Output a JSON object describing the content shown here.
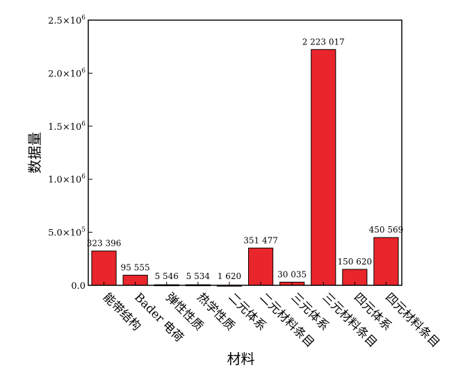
{
  "chart_data": {
    "type": "bar",
    "xlabel": "材料",
    "ylabel": "数据量",
    "ylim": [
      0,
      2500000
    ],
    "grid": false,
    "bar_color": "#e8262b",
    "yticks": [
      {
        "value": 0,
        "mantissa": "0.0",
        "exp": ""
      },
      {
        "value": 500000,
        "mantissa": "5.0×10",
        "exp": "5"
      },
      {
        "value": 1000000,
        "mantissa": "1.0×10",
        "exp": "6"
      },
      {
        "value": 1500000,
        "mantissa": "1.5×10",
        "exp": "6"
      },
      {
        "value": 2000000,
        "mantissa": "2.0×10",
        "exp": "6"
      },
      {
        "value": 2500000,
        "mantissa": "2.5×10",
        "exp": "6"
      }
    ],
    "categories": [
      "能带结构",
      "Bader 电荷",
      "弹性性质",
      "热学性质",
      "二元体系",
      "二元材料条目",
      "三元体系",
      "三元材料条目",
      "四元体系",
      "四元材料条目"
    ],
    "values": [
      323396,
      95555,
      5546,
      5534,
      1620,
      351477,
      30035,
      2223017,
      150620,
      450569
    ],
    "value_labels": [
      "323 396",
      "95 555",
      "5 546",
      "5 534",
      "1 620",
      "351 477",
      "30 035",
      "2 223 017",
      "150 620",
      "450 569"
    ]
  }
}
